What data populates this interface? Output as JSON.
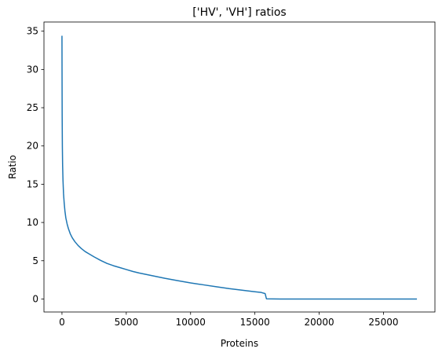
{
  "chart_data": {
    "type": "line",
    "title": "['HV', 'VH'] ratios",
    "xlabel": "Proteins",
    "ylabel": "Ratio",
    "xlim": [
      -1400,
      29000
    ],
    "ylim": [
      -1.7,
      36.2
    ],
    "xticks": [
      0,
      5000,
      10000,
      15000,
      20000,
      25000
    ],
    "yticks": [
      0,
      5,
      10,
      15,
      20,
      25,
      30,
      35
    ],
    "xtick_labels": [
      "0",
      "5000",
      "10000",
      "15000",
      "20000",
      "25000"
    ],
    "ytick_labels": [
      "0",
      "5",
      "10",
      "15",
      "20",
      "25",
      "30",
      "35"
    ],
    "grid": false,
    "series": [
      {
        "color": "#1f77b4",
        "x": [
          0,
          5,
          15,
          30,
          50,
          80,
          120,
          170,
          230,
          300,
          400,
          500,
          650,
          800,
          1000,
          1250,
          1500,
          1800,
          2100,
          2500,
          3000,
          3500,
          4000,
          4500,
          5000,
          5500,
          6000,
          7000,
          8000,
          9000,
          10000,
          11000,
          12000,
          13000,
          14000,
          15000,
          15500,
          15800,
          15850,
          15900,
          17000,
          20000,
          25000,
          27600
        ],
        "y": [
          34.4,
          30.0,
          24.0,
          20.0,
          17.5,
          15.5,
          13.8,
          12.6,
          11.5,
          10.6,
          9.8,
          9.2,
          8.5,
          8.0,
          7.5,
          7.0,
          6.6,
          6.2,
          5.9,
          5.5,
          5.05,
          4.65,
          4.35,
          4.1,
          3.85,
          3.6,
          3.4,
          3.05,
          2.7,
          2.4,
          2.1,
          1.85,
          1.6,
          1.35,
          1.15,
          0.95,
          0.85,
          0.7,
          0.35,
          0.02,
          0.0,
          0.0,
          0.0,
          0.0
        ]
      }
    ]
  }
}
